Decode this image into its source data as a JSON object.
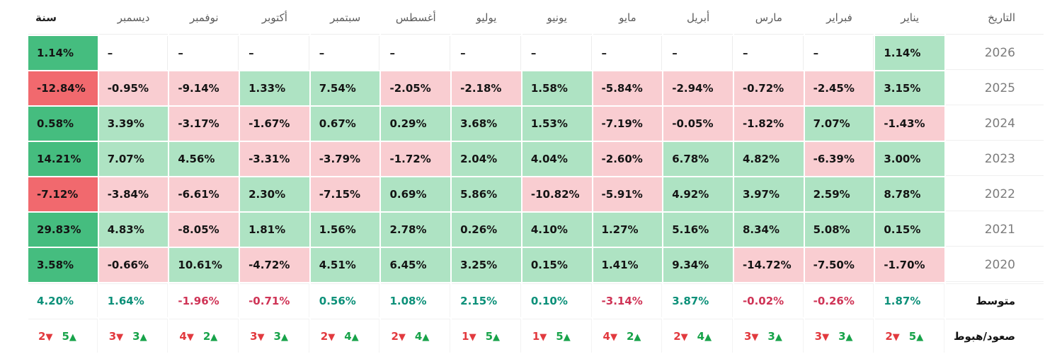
{
  "ui": {
    "empty_value": "–"
  },
  "icons": {
    "down_arrow": "▼",
    "up_arrow": "▲"
  },
  "colors": {
    "positive_strong": "#45bd7f",
    "positive_light": "#aee3c3",
    "negative_light": "#f9cdd1",
    "negative_strong": "#f1696e",
    "average_positive": "#0c9079",
    "average_negative": "#cf3456",
    "arrow_up_green": "#18a34a",
    "arrow_down_red": "#e23a3f",
    "header_text": "#5c5c5c",
    "year_label_text": "#7c7c7c"
  },
  "chart_data": {
    "type": "heatmap",
    "title": "",
    "direction": "rtl",
    "date_label": "التاريخ",
    "year_total_label": "سنة",
    "months": [
      "يناير",
      "فبراير",
      "مارس",
      "أبريل",
      "مايو",
      "يونيو",
      "يوليو",
      "أغسطس",
      "سبتمبر",
      "أكتوبر",
      "نوفمبر",
      "ديسمبر"
    ],
    "value_unit": "%",
    "rows": [
      {
        "year": "2026",
        "values": [
          1.14,
          null,
          null,
          null,
          null,
          null,
          null,
          null,
          null,
          null,
          null,
          null
        ],
        "total": 1.14
      },
      {
        "year": "2025",
        "values": [
          3.15,
          -2.45,
          -0.72,
          -2.94,
          -5.84,
          1.58,
          -2.18,
          -2.05,
          7.54,
          1.33,
          -9.14,
          -0.95
        ],
        "total": -12.84
      },
      {
        "year": "2024",
        "values": [
          -1.43,
          7.07,
          -1.82,
          -0.05,
          -7.19,
          1.53,
          3.68,
          0.29,
          0.67,
          -1.67,
          -3.17,
          3.39
        ],
        "total": 0.58
      },
      {
        "year": "2023",
        "values": [
          3.0,
          -6.39,
          4.82,
          6.78,
          -2.6,
          4.04,
          2.04,
          -1.72,
          -3.79,
          -3.31,
          4.56,
          7.07
        ],
        "total": 14.21
      },
      {
        "year": "2022",
        "values": [
          8.78,
          2.59,
          3.97,
          4.92,
          -5.91,
          -10.82,
          5.86,
          0.69,
          -7.15,
          2.3,
          -6.61,
          -3.84
        ],
        "total": -7.12
      },
      {
        "year": "2021",
        "values": [
          0.15,
          5.08,
          8.34,
          5.16,
          1.27,
          4.1,
          0.26,
          2.78,
          1.56,
          1.81,
          -8.05,
          4.83
        ],
        "total": 29.83
      },
      {
        "year": "2020",
        "values": [
          -1.7,
          -7.5,
          -14.72,
          9.34,
          1.41,
          0.15,
          3.25,
          6.45,
          4.51,
          -4.72,
          10.61,
          -0.66
        ],
        "total": 3.58
      }
    ],
    "average": {
      "label": "متوسط",
      "values": [
        1.87,
        -0.26,
        -0.02,
        3.87,
        -3.14,
        0.1,
        2.15,
        1.08,
        0.56,
        -0.71,
        -1.96,
        1.64
      ],
      "total": 4.2
    },
    "updown": {
      "label": "صعود/هبوط",
      "values": [
        {
          "down": 2,
          "up": 5
        },
        {
          "down": 3,
          "up": 3
        },
        {
          "down": 3,
          "up": 3
        },
        {
          "down": 2,
          "up": 4
        },
        {
          "down": 4,
          "up": 2
        },
        {
          "down": 1,
          "up": 5
        },
        {
          "down": 1,
          "up": 5
        },
        {
          "down": 2,
          "up": 4
        },
        {
          "down": 2,
          "up": 4
        },
        {
          "down": 3,
          "up": 3
        },
        {
          "down": 4,
          "up": 2
        },
        {
          "down": 3,
          "up": 3
        }
      ],
      "total": {
        "down": 2,
        "up": 5
      }
    }
  }
}
